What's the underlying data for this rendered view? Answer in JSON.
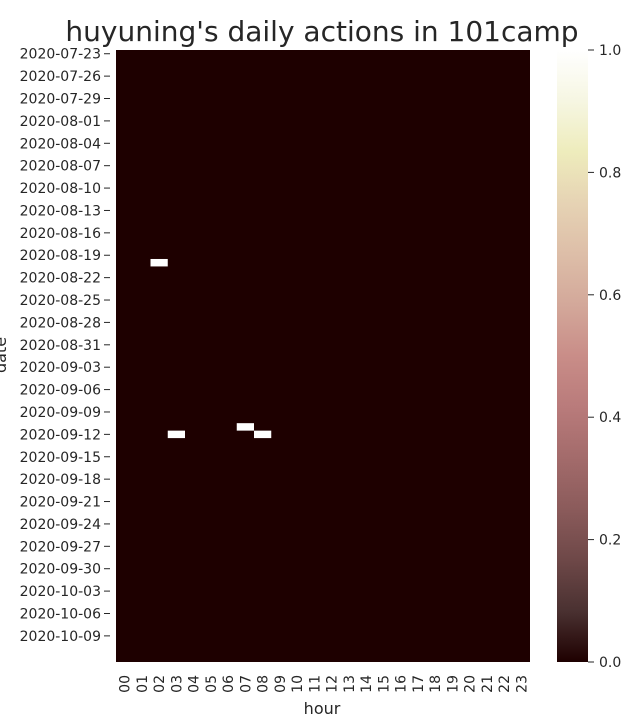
{
  "chart_data": {
    "type": "heatmap",
    "title": "huyuning's daily actions in 101camp",
    "xlabel": "hour",
    "ylabel": "date",
    "x_categories": [
      "00",
      "01",
      "02",
      "03",
      "04",
      "05",
      "06",
      "07",
      "08",
      "09",
      "10",
      "11",
      "12",
      "13",
      "14",
      "15",
      "16",
      "17",
      "18",
      "19",
      "20",
      "21",
      "22",
      "23"
    ],
    "y_start": "2020-07-23",
    "y_end": "2020-10-12",
    "y_tick_labels": [
      "2020-07-23",
      "2020-07-26",
      "2020-07-29",
      "2020-08-01",
      "2020-08-04",
      "2020-08-07",
      "2020-08-10",
      "2020-08-13",
      "2020-08-16",
      "2020-08-19",
      "2020-08-22",
      "2020-08-25",
      "2020-08-28",
      "2020-08-31",
      "2020-09-03",
      "2020-09-06",
      "2020-09-09",
      "2020-09-12",
      "2020-09-15",
      "2020-09-18",
      "2020-09-21",
      "2020-09-24",
      "2020-09-27",
      "2020-09-30",
      "2020-10-03",
      "2020-10-06",
      "2020-10-09"
    ],
    "default_value": 0.0,
    "cells": [
      {
        "date": "2020-08-20",
        "hour": "02",
        "value": 1.0
      },
      {
        "date": "2020-09-12",
        "hour": "03",
        "value": 1.0
      },
      {
        "date": "2020-09-11",
        "hour": "07",
        "value": 1.0
      },
      {
        "date": "2020-09-12",
        "hour": "08",
        "value": 1.0
      }
    ],
    "colorbar": {
      "range": [
        0.0,
        1.0
      ],
      "ticks": [
        "0.0",
        "0.2",
        "0.4",
        "0.6",
        "0.8",
        "1.0"
      ],
      "colormap": "pink"
    },
    "colors": {
      "low": "#1e0000",
      "high": "#ffffff",
      "stops": [
        "#1e0000",
        "#4a3131",
        "#6e4848",
        "#8b5b5b",
        "#a36b6b",
        "#b97b7b",
        "#c98d88",
        "#d3a89a",
        "#ddbea8",
        "#e6d3b4",
        "#eeecbc",
        "#f6f6e2",
        "#ffffff"
      ]
    }
  }
}
